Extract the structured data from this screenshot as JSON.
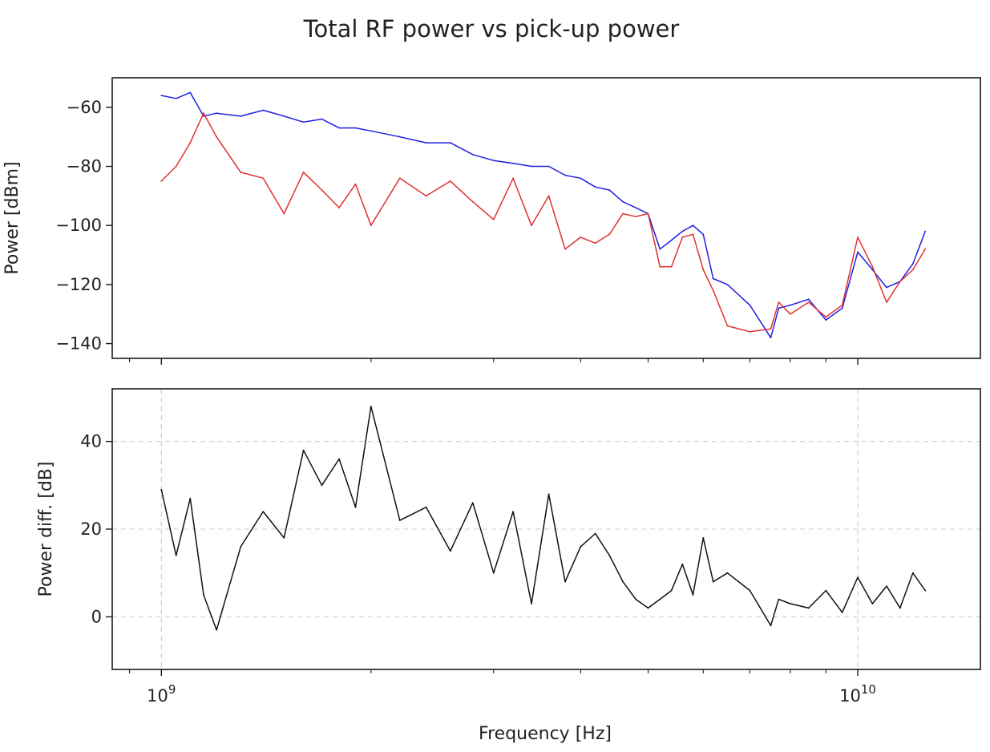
{
  "chart_data": [
    {
      "type": "line",
      "title": "Total RF power vs pick-up power",
      "xlabel": "",
      "ylabel": "Power [dBm]",
      "xscale": "log",
      "xlim": [
        850000000,
        15000000000
      ],
      "ylim": [
        -145,
        -50
      ],
      "yticks": [
        -60,
        -80,
        -100,
        -120,
        -140
      ],
      "ytick_labels": [
        "−60",
        "−80",
        "−100",
        "−120",
        "−140"
      ],
      "grid": false,
      "legend": "none",
      "x": [
        1000000000.0,
        1050000000.0,
        1100000000.0,
        1150000000.0,
        1200000000.0,
        1300000000.0,
        1400000000.0,
        1500000000.0,
        1600000000.0,
        1700000000.0,
        1800000000.0,
        1900000000.0,
        2000000000.0,
        2200000000.0,
        2400000000.0,
        2600000000.0,
        2800000000.0,
        3000000000.0,
        3200000000.0,
        3400000000.0,
        3600000000.0,
        3800000000.0,
        4000000000.0,
        4200000000.0,
        4400000000.0,
        4600000000.0,
        4800000000.0,
        5000000000.0,
        5200000000.0,
        5400000000.0,
        5600000000.0,
        5800000000.0,
        6000000000.0,
        6200000000.0,
        6500000000.0,
        7000000000.0,
        7500000000.0,
        7700000000.0,
        8000000000.0,
        8500000000.0,
        9000000000.0,
        9500000000.0,
        10000000000.0,
        10500000000.0,
        11000000000.0,
        11500000000.0,
        12000000000.0,
        12500000000.0
      ],
      "series": [
        {
          "color": "#1f1fe6",
          "values": [
            -56,
            -57,
            -55,
            -63,
            -62,
            -63,
            -61,
            -63,
            -65,
            -64,
            -67,
            -67,
            -68,
            -70,
            -72,
            -72,
            -76,
            -78,
            -79,
            -80,
            -80,
            -83,
            -84,
            -87,
            -88,
            -92,
            -94,
            -96,
            -108,
            -105,
            -102,
            -100,
            -103,
            -118,
            -120,
            -127,
            -138,
            -128,
            -127,
            -125,
            -132,
            -128,
            -109,
            -115,
            -121,
            -119,
            -113,
            -102
          ]
        },
        {
          "color": "#e03030",
          "values": [
            -85,
            -80,
            -72,
            -62,
            -70,
            -82,
            -84,
            -96,
            -82,
            -88,
            -94,
            -86,
            -100,
            -84,
            -90,
            -85,
            -92,
            -98,
            -84,
            -100,
            -90,
            -108,
            -104,
            -106,
            -103,
            -96,
            -97,
            -96,
            -114,
            -114,
            -104,
            -103,
            -115,
            -122,
            -134,
            -136,
            -135,
            -126,
            -130,
            -126,
            -131,
            -127,
            -104,
            -114,
            -126,
            -119,
            -115,
            -108
          ]
        }
      ]
    },
    {
      "type": "line",
      "title": "",
      "xlabel": "Frequency [Hz]",
      "ylabel": "Power diff. [dB]",
      "xscale": "log",
      "xlim": [
        850000000,
        15000000000
      ],
      "ylim": [
        -12,
        52
      ],
      "yticks": [
        0,
        20,
        40
      ],
      "ytick_labels": [
        "0",
        "20",
        "40"
      ],
      "xtick_labels": [
        {
          "base": "10",
          "exp": "9"
        },
        {
          "base": "10",
          "exp": "10"
        }
      ],
      "grid": true,
      "legend": "none",
      "x": [
        1000000000.0,
        1050000000.0,
        1100000000.0,
        1150000000.0,
        1200000000.0,
        1300000000.0,
        1400000000.0,
        1500000000.0,
        1600000000.0,
        1700000000.0,
        1800000000.0,
        1900000000.0,
        2000000000.0,
        2200000000.0,
        2400000000.0,
        2600000000.0,
        2800000000.0,
        3000000000.0,
        3200000000.0,
        3400000000.0,
        3600000000.0,
        3800000000.0,
        4000000000.0,
        4200000000.0,
        4400000000.0,
        4600000000.0,
        4800000000.0,
        5000000000.0,
        5200000000.0,
        5400000000.0,
        5600000000.0,
        5800000000.0,
        6000000000.0,
        6200000000.0,
        6500000000.0,
        7000000000.0,
        7500000000.0,
        7700000000.0,
        8000000000.0,
        8500000000.0,
        9000000000.0,
        9500000000.0,
        10000000000.0,
        10500000000.0,
        11000000000.0,
        11500000000.0,
        12000000000.0,
        12500000000.0
      ],
      "series": [
        {
          "color": "#111111",
          "values": [
            29,
            14,
            27,
            5,
            -3,
            16,
            24,
            18,
            38,
            30,
            36,
            25,
            48,
            22,
            25,
            15,
            26,
            10,
            24,
            3,
            28,
            8,
            16,
            19,
            14,
            8,
            4,
            2,
            4,
            6,
            12,
            5,
            18,
            8,
            10,
            6,
            -2,
            4,
            3,
            2,
            6,
            1,
            9,
            3,
            7,
            2,
            10,
            6
          ]
        }
      ]
    }
  ]
}
